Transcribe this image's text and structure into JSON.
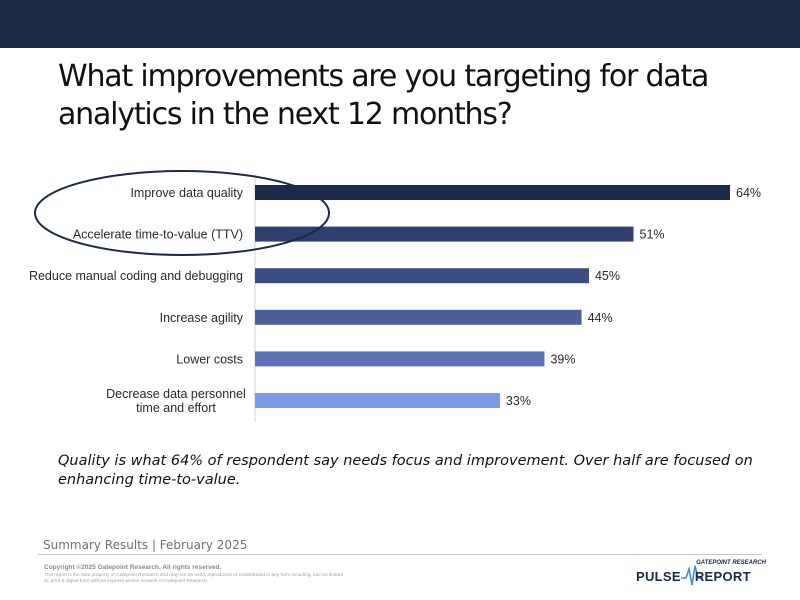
{
  "page": {
    "title": "What improvements are you targeting for data analytics in the next 12 months?",
    "caption": "Quality is what 64% of respondent say needs focus and improvement. Over half are focused on enhancing time-to-value.",
    "summary": "Summary Results | February 2025",
    "copyright": "Copyright ©2025 Gatepoint Research. All rights reserved.",
    "disclaimer": "This report is the data property of Gatepoint Research and may not be used, reproduced or redistributed in any form including, but not limited to, print & digital form without express written consent of Gatepoint Research.",
    "logo": {
      "top": "GATEPOINT RESEARCH",
      "left": "PULSE",
      "right": "REPORT"
    }
  },
  "chart_data": {
    "type": "bar",
    "orientation": "horizontal",
    "categories": [
      "Improve data quality",
      "Accelerate time-to-value (TTV)",
      "Reduce manual coding and debugging",
      "Increase agility",
      "Lower costs",
      "Decrease data personnel\ntime and effort"
    ],
    "values": [
      64,
      51,
      45,
      44,
      39,
      33
    ],
    "value_labels": [
      "64%",
      "51%",
      "45%",
      "44%",
      "39%",
      "33%"
    ],
    "unit": "%",
    "xlim": [
      0,
      68
    ],
    "colors": [
      "#1b2a4a",
      "#2f3f6e",
      "#3b4d85",
      "#4a5f9c",
      "#5b72b8",
      "#7b9be6"
    ],
    "highlight": "ellipse around first two categories",
    "highlight_color": "#1b2a4a",
    "grid": false,
    "legend": "none"
  }
}
